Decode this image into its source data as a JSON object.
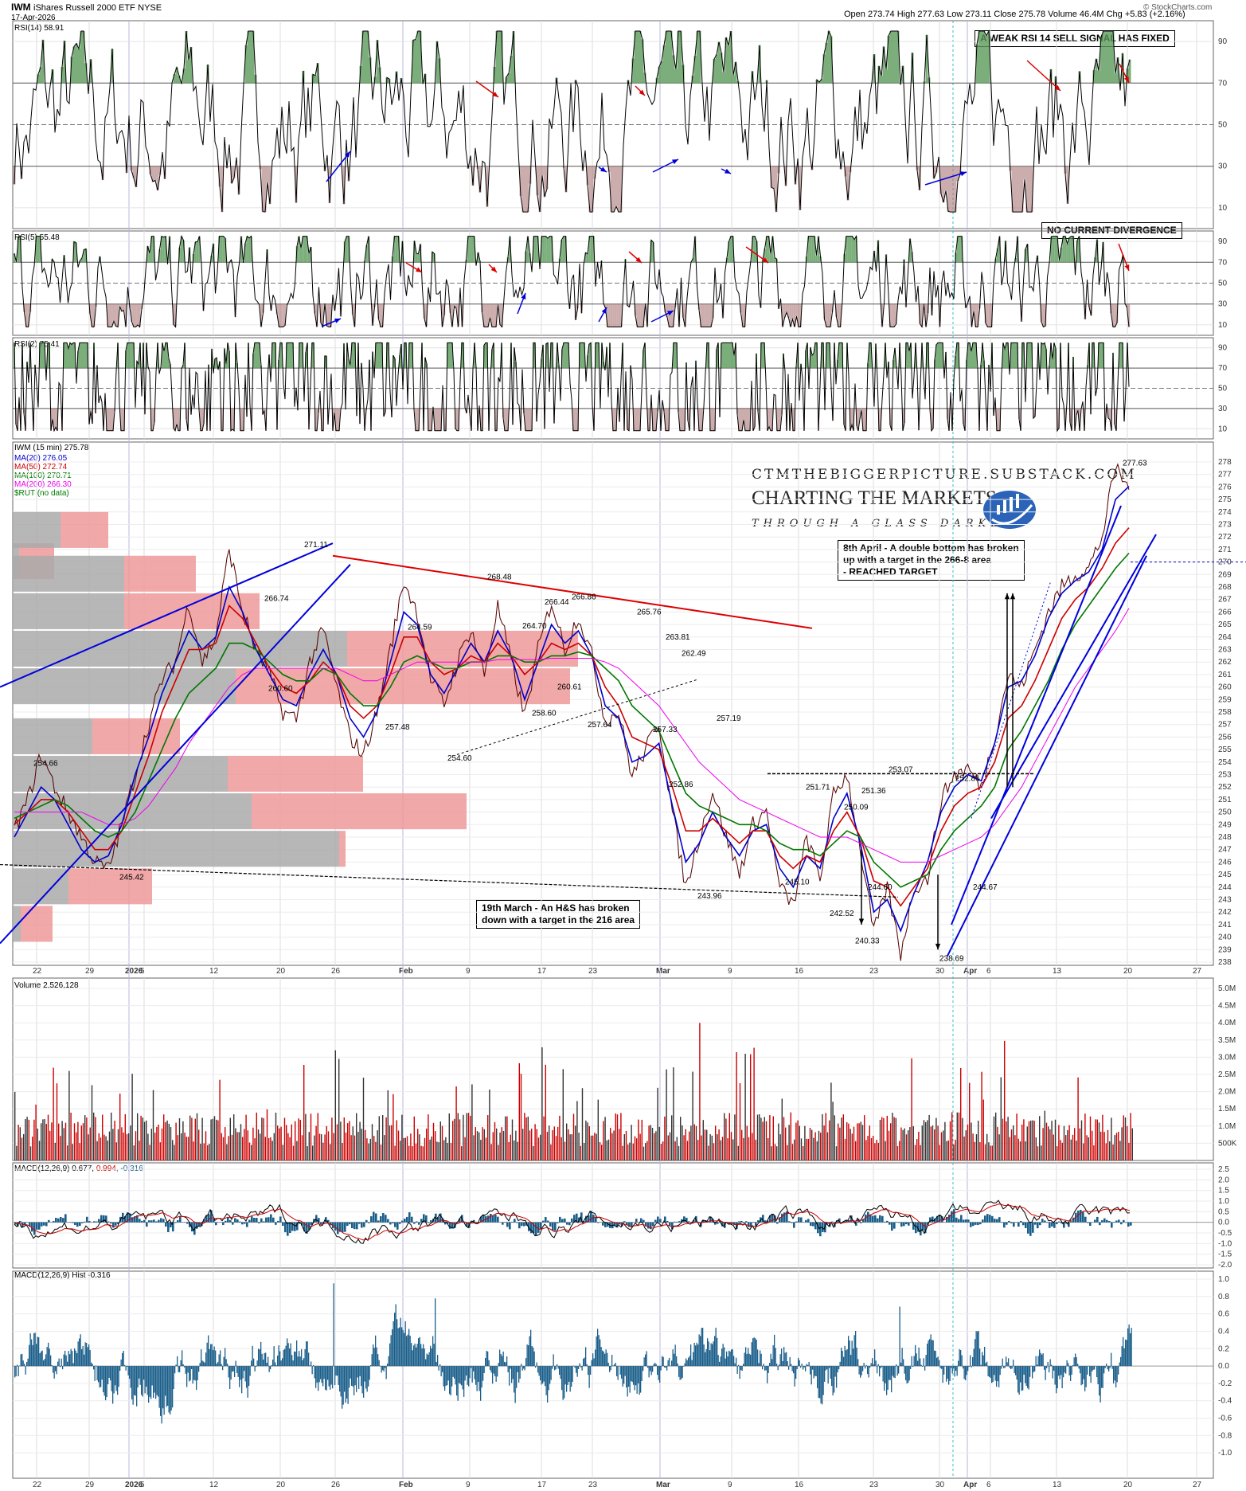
{
  "header": {
    "symbol": "IWM",
    "name": "iShares Russell 2000 ETF",
    "exchange": "NYSE",
    "date": "17-Apr-2026",
    "open_label": "Open",
    "open": "273.74",
    "high_label": "High",
    "high": "277.63",
    "low_label": "Low",
    "low": "273.11",
    "close_label": "Close",
    "close": "275.78",
    "volume_label": "Volume",
    "volume": "46.4M",
    "chg_label": "Chg",
    "chg": "+5.83 (+2.16%)",
    "credit": "© StockCharts.com"
  },
  "colors": {
    "ma20": "#0000cc",
    "ma50": "#cc0000",
    "ma100": "#007700",
    "ma200": "#ee00ee",
    "trend_blue": "#0000dd",
    "trend_red": "#dd0000",
    "vol_red": "#cc0000",
    "vol_black": "#333333",
    "hist_blue": "#1a5e8a",
    "vbp_gray": "#aaaaaa",
    "vbp_red": "#ee9999"
  },
  "panels": {
    "rsi14": {
      "label": "RSI(14) 58.91",
      "ticks": [
        "90",
        "70",
        "50",
        "30",
        "10"
      ]
    },
    "rsi5": {
      "label": "RSI(5) 55.48",
      "ticks": [
        "90",
        "70",
        "50",
        "30",
        "10"
      ]
    },
    "rsi2": {
      "label": "RSI(2) 75.41",
      "ticks": [
        "90",
        "70",
        "50",
        "30",
        "10"
      ]
    },
    "price": {
      "label": "IWM (15 min) 275.78",
      "legend": [
        "MA(20) 276.05",
        "MA(50) 272.74",
        "MA(100) 270.71",
        "MA(200) 266.30",
        "$RUT (no data)"
      ]
    },
    "volume": {
      "label": "Volume 2,526,128",
      "ticks": [
        "5.0M",
        "4.5M",
        "4.0M",
        "3.5M",
        "3.0M",
        "2.5M",
        "2.0M",
        "1.5M",
        "1.0M",
        "500K"
      ]
    },
    "macd": {
      "label_a": "MACD(12,26,9) 0.677, ",
      "label_b": "0.994",
      "label_c": ", -0.316",
      "ticks": [
        "2.5",
        "2.0",
        "1.5",
        "1.0",
        "0.5",
        "0.0",
        "-0.5",
        "-1.0",
        "-1.5",
        "-2.0"
      ]
    },
    "hist": {
      "label": "MACD(12,26,9) Hist -0.316",
      "ticks": [
        "1.0",
        "0.8",
        "0.6",
        "0.4",
        "0.2",
        "0.0",
        "-0.2",
        "-0.4",
        "-0.6",
        "-0.8",
        "-1.0"
      ]
    }
  },
  "notes": {
    "rsi14": "A WEAK RSI 14 SELL SIGNAL HAS FIXED",
    "rsi5": "NO CURRENT DIVERGENCE",
    "double_bottom": [
      "8th April - A double bottom has broken",
      "up with a target in the 266-8 area",
      "- REACHED TARGET"
    ],
    "hs": [
      "19th March - An H&S has broken",
      "down with a target in the 216 area"
    ]
  },
  "brand": {
    "site": "CTMTHEBIGGERPICTURE.SUBSTACK.COM",
    "title": "CHARTING THE MARKETS",
    "tagline": "THROUGH A GLASS DARKLY"
  },
  "chart_data": {
    "type": "line",
    "title": "IWM (15 min)",
    "x_axis": [
      "22",
      "29",
      "2026",
      "5",
      "12",
      "20",
      "26",
      "Feb",
      "9",
      "17",
      "23",
      "Mar",
      "9",
      "16",
      "23",
      "30",
      "Apr",
      "6",
      "13",
      "20",
      "27"
    ],
    "y_axis_price": [
      "278",
      "277",
      "276",
      "275",
      "274",
      "273",
      "272",
      "271",
      "270",
      "269",
      "268",
      "267",
      "266",
      "265",
      "264",
      "263",
      "262",
      "261",
      "260",
      "259",
      "258",
      "257",
      "256",
      "255",
      "254",
      "253",
      "252",
      "251",
      "250",
      "249",
      "248",
      "247",
      "246",
      "245",
      "244",
      "243",
      "242",
      "241",
      "240",
      "239",
      "238"
    ],
    "ylim": [
      238,
      278
    ],
    "series": [
      {
        "name": "IWM",
        "values": [
          248.5,
          251,
          254.66,
          252,
          250,
          248,
          246,
          245.42,
          249,
          253,
          257,
          260.6,
          262,
          266.74,
          262,
          264,
          271.11,
          266,
          263,
          261,
          258,
          257.48,
          262,
          264.59,
          260,
          256,
          254.6,
          258,
          263,
          268.48,
          266,
          260.61,
          258.6,
          262,
          264.7,
          261,
          266.44,
          262,
          257.64,
          263,
          266.86,
          263,
          265.76,
          262.49,
          257.33,
          258,
          252.86,
          255,
          257.19,
          250,
          243.96,
          248,
          251.71,
          248,
          245.1,
          249,
          250.09,
          244,
          242.52,
          248,
          244.6,
          251.36,
          253.07,
          247,
          240.33,
          244,
          238.69,
          244,
          244.67,
          251,
          253,
          253.5,
          252,
          256,
          261,
          260,
          263,
          266,
          268,
          269,
          269.5,
          272,
          277.63,
          275.78
        ]
      },
      {
        "name": "MA(20)",
        "values": [
          248,
          250,
          252,
          251,
          249,
          247,
          246,
          246.5,
          249,
          253,
          256,
          259.5,
          262,
          264.5,
          263,
          264,
          268,
          266,
          263,
          261,
          259,
          258.5,
          261,
          263,
          261,
          257.5,
          256,
          258,
          262,
          266,
          265,
          261,
          259.5,
          261.5,
          263.5,
          262,
          264.5,
          262.5,
          259,
          262,
          265,
          263.5,
          264.5,
          262.5,
          258.5,
          257.5,
          254,
          254.5,
          255.5,
          250.5,
          246,
          247.5,
          250,
          248,
          246.5,
          248.5,
          249,
          245.5,
          244,
          246.5,
          245.5,
          249.5,
          251.5,
          247.5,
          242,
          243,
          240.5,
          243.5,
          246,
          250,
          252,
          253,
          252.5,
          255.5,
          260,
          260.5,
          262.5,
          265.5,
          267.5,
          268.5,
          269.2,
          271,
          275,
          276.05
        ]
      },
      {
        "name": "MA(50)",
        "values": [
          249,
          250,
          251,
          251,
          250,
          248.5,
          247,
          247,
          248.5,
          251.5,
          254.5,
          258,
          260.5,
          263,
          263,
          263.5,
          266.5,
          265.5,
          263.5,
          261.5,
          260,
          259.5,
          260.5,
          262,
          261,
          258.5,
          257.5,
          258.5,
          261,
          264,
          264,
          262,
          261,
          261.5,
          262.5,
          262,
          263.5,
          262.5,
          261,
          262,
          263.5,
          263,
          263.5,
          262.5,
          260,
          258.5,
          256,
          255.5,
          255,
          252,
          248.5,
          248.5,
          249.5,
          248.5,
          247.5,
          248.5,
          248.5,
          246.5,
          245.5,
          246.5,
          246,
          248.5,
          250,
          248,
          244.5,
          244,
          242.5,
          244,
          245.5,
          248.5,
          250.5,
          251.5,
          252,
          254,
          257.5,
          258.5,
          260.5,
          263,
          265.5,
          267,
          268,
          269.5,
          271.5,
          272.74
        ]
      },
      {
        "name": "MA(100)",
        "values": [
          249.5,
          250,
          250.5,
          251,
          250.5,
          249.5,
          248.5,
          248,
          248.5,
          250,
          252.5,
          255,
          257.5,
          259.5,
          260.5,
          261.5,
          263.5,
          263.5,
          263,
          262,
          261,
          260.5,
          260.5,
          261.5,
          261,
          259.5,
          258.5,
          258.5,
          260,
          262,
          262.5,
          262,
          261.5,
          261.5,
          262,
          262,
          262.5,
          262.5,
          262,
          262,
          262.5,
          262.5,
          262.8,
          262.5,
          261.5,
          260.5,
          258.5,
          257.5,
          256.5,
          254,
          251.5,
          250.5,
          250,
          249.5,
          249,
          249,
          248.5,
          247.5,
          247,
          247,
          246.5,
          247.5,
          248.5,
          248,
          246,
          245,
          244,
          244.5,
          245,
          247,
          248.5,
          249.5,
          250.5,
          252,
          255,
          256.5,
          258.5,
          260.5,
          263,
          265,
          266.5,
          268,
          269.5,
          270.71
        ]
      },
      {
        "name": "MA(200)",
        "values": [
          250,
          250,
          250,
          250,
          250,
          250,
          249.5,
          249,
          249,
          249.5,
          250.5,
          252,
          253.5,
          255.5,
          257,
          258.5,
          260,
          261,
          261.5,
          261.5,
          261.5,
          261.5,
          261.5,
          261.5,
          261.5,
          261,
          260.5,
          260.5,
          261,
          261.5,
          262,
          262,
          262,
          262,
          262,
          262,
          262.2,
          262.2,
          262.2,
          262.2,
          262.3,
          262.3,
          262.3,
          262.3,
          262,
          261.5,
          260.5,
          259.5,
          258.5,
          257,
          255.5,
          254,
          253,
          252,
          251,
          250.5,
          250,
          249.5,
          249,
          248.5,
          248,
          248,
          248,
          247.5,
          247,
          246.5,
          246,
          246,
          246,
          246.5,
          247,
          247.5,
          248,
          249,
          250.5,
          252,
          254,
          256,
          258,
          260,
          261.5,
          263,
          264.5,
          266.3
        ]
      }
    ],
    "price_labels": [
      "254.66",
      "245.42",
      "260.60",
      "266.74",
      "271.11",
      "257.48",
      "264.59",
      "254.60",
      "268.48",
      "258.60",
      "260.61",
      "266.44",
      "264.70",
      "257.64",
      "266.86",
      "265.76",
      "263.81",
      "262.49",
      "257.33",
      "252.86",
      "257.19",
      "243.96",
      "251.71",
      "245.10",
      "250.09",
      "242.52",
      "240.33",
      "251.36",
      "244.60",
      "253.07",
      "238.69",
      "252.86",
      "244.67",
      "277.63"
    ],
    "annotations": [
      "8th April - A double bottom has broken up with a target in the 266-8 area - REACHED TARGET",
      "19th March - An H&S has broken down with a target in the 216 area"
    ],
    "grid": true,
    "legend": "top-left"
  }
}
